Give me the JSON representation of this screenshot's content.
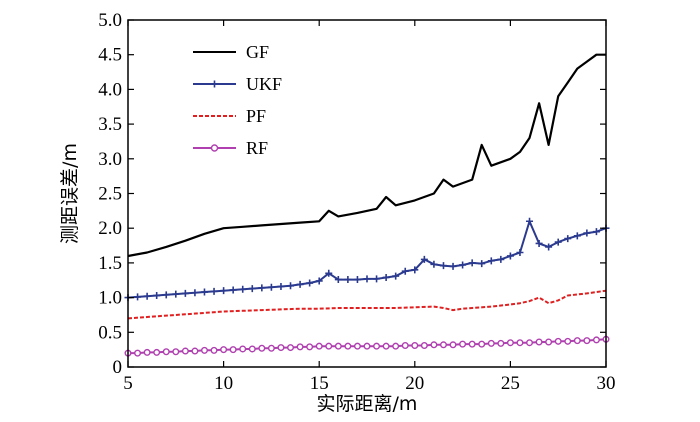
{
  "chart_data": {
    "type": "line",
    "xlabel": "实际距离/m",
    "ylabel": "测距误差/m",
    "xlim": [
      5,
      30
    ],
    "ylim": [
      0,
      5
    ],
    "xticks": [
      5,
      10,
      15,
      20,
      25,
      30
    ],
    "yticks": [
      0,
      0.5,
      1.0,
      1.5,
      2.0,
      2.5,
      3.0,
      3.5,
      4.0,
      4.5,
      5.0
    ],
    "ytick_labels": [
      "0",
      "0.5",
      "1.0",
      "1.5",
      "2.0",
      "2.5",
      "3.0",
      "3.5",
      "4.0",
      "4.5",
      "5.0"
    ],
    "xtick_labels": [
      "5",
      "10",
      "15",
      "20",
      "25",
      "30"
    ],
    "legend_position": "top-left",
    "grid": false,
    "series": [
      {
        "name": "GF",
        "color": "#000000",
        "style": "solid",
        "marker": "none",
        "x": [
          5,
          6,
          7,
          8,
          9,
          10,
          11,
          12,
          13,
          14,
          15,
          15.5,
          16,
          17,
          18,
          18.5,
          19,
          20,
          21,
          21.5,
          22,
          23,
          23.5,
          24,
          25,
          25.5,
          26,
          26.5,
          27,
          27.5,
          28,
          28.5,
          29,
          29.5,
          30
        ],
        "y": [
          1.6,
          1.65,
          1.73,
          1.82,
          1.92,
          2.0,
          2.02,
          2.04,
          2.06,
          2.08,
          2.1,
          2.25,
          2.17,
          2.22,
          2.28,
          2.45,
          2.33,
          2.4,
          2.5,
          2.7,
          2.6,
          2.7,
          3.2,
          2.9,
          3.0,
          3.1,
          3.3,
          3.8,
          3.2,
          3.9,
          4.1,
          4.3,
          4.4,
          4.5,
          4.5
        ]
      },
      {
        "name": "UKF",
        "color": "#2b3a8f",
        "style": "solid",
        "marker": "plus",
        "x": [
          5,
          5.5,
          6,
          6.5,
          7,
          7.5,
          8,
          8.5,
          9,
          9.5,
          10,
          10.5,
          11,
          11.5,
          12,
          12.5,
          13,
          13.5,
          14,
          14.5,
          15,
          15.5,
          16,
          16.5,
          17,
          17.5,
          18,
          18.5,
          19,
          19.5,
          20,
          20.5,
          21,
          21.5,
          22,
          22.5,
          23,
          23.5,
          24,
          24.5,
          25,
          25.5,
          26,
          26.5,
          27,
          27.5,
          28,
          28.5,
          29,
          29.5,
          30
        ],
        "y": [
          1.0,
          1.01,
          1.02,
          1.03,
          1.04,
          1.05,
          1.06,
          1.07,
          1.08,
          1.09,
          1.1,
          1.11,
          1.12,
          1.13,
          1.14,
          1.15,
          1.16,
          1.17,
          1.19,
          1.21,
          1.24,
          1.35,
          1.26,
          1.26,
          1.26,
          1.27,
          1.27,
          1.29,
          1.31,
          1.38,
          1.4,
          1.55,
          1.48,
          1.46,
          1.45,
          1.47,
          1.5,
          1.49,
          1.53,
          1.55,
          1.6,
          1.65,
          2.1,
          1.78,
          1.73,
          1.8,
          1.85,
          1.89,
          1.93,
          1.95,
          2.0
        ]
      },
      {
        "name": "PF",
        "color": "#e02020",
        "style": "dashed",
        "marker": "none",
        "x": [
          5,
          6,
          7,
          8,
          9,
          10,
          11,
          12,
          13,
          14,
          15,
          16,
          17,
          18,
          19,
          20,
          21,
          21.5,
          22,
          22.5,
          23,
          24,
          25,
          25.5,
          26,
          26.5,
          27,
          27.5,
          28,
          29,
          30
        ],
        "y": [
          0.7,
          0.72,
          0.74,
          0.76,
          0.78,
          0.8,
          0.81,
          0.82,
          0.83,
          0.84,
          0.84,
          0.85,
          0.85,
          0.85,
          0.85,
          0.86,
          0.87,
          0.85,
          0.82,
          0.84,
          0.85,
          0.87,
          0.9,
          0.92,
          0.95,
          1.0,
          0.92,
          0.96,
          1.03,
          1.06,
          1.1
        ]
      },
      {
        "name": "RF",
        "color": "#b040b0",
        "style": "solid",
        "marker": "circle",
        "x": [
          5,
          5.5,
          6,
          6.5,
          7,
          7.5,
          8,
          8.5,
          9,
          9.5,
          10,
          10.5,
          11,
          11.5,
          12,
          12.5,
          13,
          13.5,
          14,
          14.5,
          15,
          15.5,
          16,
          16.5,
          17,
          17.5,
          18,
          18.5,
          19,
          19.5,
          20,
          20.5,
          21,
          21.5,
          22,
          22.5,
          23,
          23.5,
          24,
          24.5,
          25,
          25.5,
          26,
          26.5,
          27,
          27.5,
          28,
          28.5,
          29,
          29.5,
          30
        ],
        "y": [
          0.2,
          0.2,
          0.21,
          0.21,
          0.22,
          0.22,
          0.23,
          0.23,
          0.24,
          0.24,
          0.25,
          0.25,
          0.26,
          0.26,
          0.27,
          0.27,
          0.28,
          0.28,
          0.29,
          0.29,
          0.3,
          0.3,
          0.3,
          0.3,
          0.3,
          0.3,
          0.3,
          0.3,
          0.3,
          0.31,
          0.31,
          0.31,
          0.32,
          0.32,
          0.32,
          0.33,
          0.33,
          0.33,
          0.34,
          0.34,
          0.35,
          0.35,
          0.35,
          0.36,
          0.36,
          0.37,
          0.37,
          0.38,
          0.38,
          0.39,
          0.4
        ]
      }
    ]
  }
}
